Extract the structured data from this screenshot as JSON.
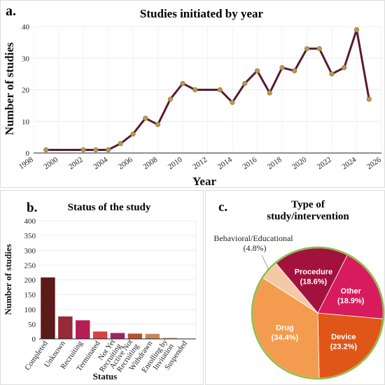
{
  "chart_data": [
    {
      "panel": "a.",
      "type": "line",
      "title": "Studies initiated by year",
      "xlabel": "Year",
      "ylabel": "Number of studies",
      "xlim": [
        1998,
        2026
      ],
      "ylim": [
        0,
        40
      ],
      "xticks": [
        1998,
        2000,
        2002,
        2004,
        2006,
        2008,
        2010,
        2012,
        2014,
        2016,
        2018,
        2020,
        2022,
        2024,
        2026
      ],
      "yticks": [
        0,
        10,
        20,
        30,
        40
      ],
      "grid": true,
      "x": [
        1999,
        2002,
        2003,
        2004,
        2005,
        2006,
        2007,
        2008,
        2009,
        2010,
        2011,
        2013,
        2014,
        2015,
        2016,
        2017,
        2018,
        2019,
        2020,
        2021,
        2022,
        2023,
        2024,
        2025
      ],
      "values": [
        1,
        1,
        1,
        1,
        3,
        6,
        11,
        9,
        17,
        22,
        20,
        20,
        16,
        22,
        26,
        19,
        27,
        26,
        33,
        33,
        25,
        27,
        39,
        17
      ],
      "line_color": "#5a1a33",
      "marker_color": "#b49a52"
    },
    {
      "panel": "b.",
      "type": "bar",
      "title": "Status of the study",
      "xlabel": "Status",
      "ylabel": "Number of studies",
      "ylim": [
        0,
        400
      ],
      "yticks": [
        0,
        50,
        100,
        150,
        200,
        250,
        300,
        350,
        400
      ],
      "grid": true,
      "categories": [
        "Completed",
        "Unknown",
        "Recruiting",
        "Terminated",
        "Not Yet Recruiting",
        "Active Not Recruiting",
        "Withdrawn",
        "Enrolling by Invitation",
        "Suspended"
      ],
      "values": [
        208,
        76,
        63,
        25,
        20,
        18,
        17,
        4,
        1
      ],
      "colors": [
        "#5a1a1a",
        "#962a38",
        "#b51e54",
        "#d64242",
        "#a02560",
        "#b5552c",
        "#c6885a",
        "#d6b087",
        "#e8d4c0"
      ]
    },
    {
      "panel": "c.",
      "type": "pie",
      "title_lines": [
        "Type of",
        "study/intervention"
      ],
      "slices": [
        {
          "label": "Procedure",
          "pct_text": "(18.6%)",
          "value": 18.6,
          "color": "#a3123f"
        },
        {
          "label": "Other",
          "pct_text": "(18.9%)",
          "value": 18.9,
          "color": "#d81b5c"
        },
        {
          "label": "Device",
          "pct_text": "(23.2%)",
          "value": 23.2,
          "color": "#e05618"
        },
        {
          "label": "Drug",
          "pct_text": "(34.4%)",
          "value": 34.4,
          "color": "#f39c4f"
        },
        {
          "label": "Behavioral/Educational",
          "pct_text": "(4.8%)",
          "value": 4.8,
          "color": "#f6c9a6"
        }
      ],
      "edge_color": "#8bbd4a"
    }
  ]
}
